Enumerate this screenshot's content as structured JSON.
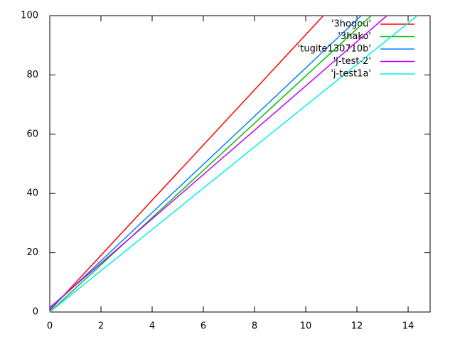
{
  "chart_data": {
    "type": "line",
    "series": [
      {
        "name": "'3hogou'",
        "color": "#ff0000",
        "x": [
          0,
          10.69
        ],
        "values": [
          0.5,
          100
        ]
      },
      {
        "name": "'3hako'",
        "color": "#00c000",
        "x": [
          0,
          12.56
        ],
        "values": [
          0,
          100
        ]
      },
      {
        "name": "'tugite130710b'",
        "color": "#0080ff",
        "x": [
          0,
          12.17
        ],
        "values": [
          1,
          100
        ]
      },
      {
        "name": "'j-test-2'",
        "color": "#c000ff",
        "x": [
          0,
          13.17
        ],
        "values": [
          1.5,
          100
        ]
      },
      {
        "name": "'j-test1a'",
        "color": "#00eeee",
        "x": [
          0,
          14.36
        ],
        "values": [
          0,
          100
        ]
      }
    ],
    "xlim": [
      0,
      14.86
    ],
    "xticks": [
      0,
      2,
      4,
      6,
      8,
      10,
      12,
      14
    ],
    "ylim": [
      0,
      100
    ],
    "yticks": [
      0,
      20,
      40,
      60,
      80,
      100
    ],
    "legend": "top-right"
  }
}
